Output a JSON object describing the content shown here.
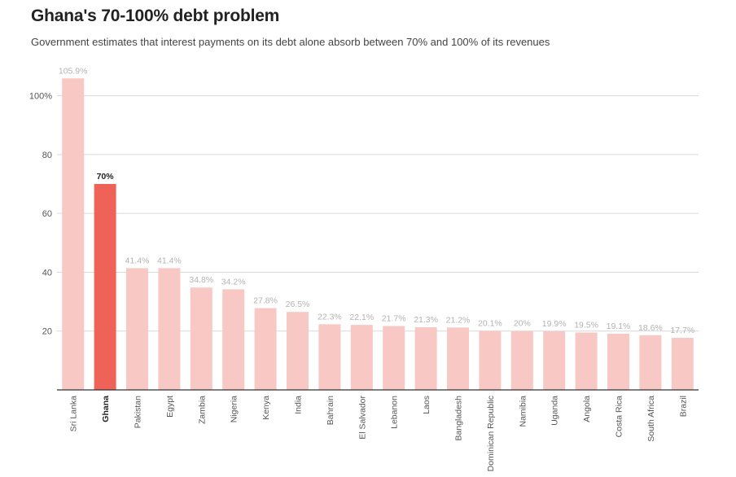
{
  "header": {
    "title": "Ghana's 70-100% debt problem",
    "subtitle": "Government estimates that interest payments on its debt alone absorb between 70% and 100% of its revenues"
  },
  "chart_data": {
    "type": "bar",
    "categories": [
      "Sri Lanka",
      "Ghana",
      "Pakistan",
      "Egypt",
      "Zambia",
      "Nigeria",
      "Kenya",
      "India",
      "Bahrain",
      "El Salvador",
      "Lebanon",
      "Laos",
      "Bangladesh",
      "Dominican Republic",
      "Namibia",
      "Uganda",
      "Angola",
      "Costa Rica",
      "South Africa",
      "Brazil"
    ],
    "values": [
      105.9,
      70,
      41.4,
      41.4,
      34.8,
      34.2,
      27.8,
      26.5,
      22.3,
      22.1,
      21.7,
      21.3,
      21.2,
      20.1,
      20,
      19.9,
      19.5,
      19.1,
      18.6,
      17.7
    ],
    "value_labels": [
      "105.9%",
      "70%",
      "41.4%",
      "41.4%",
      "34.8%",
      "34.2%",
      "27.8%",
      "26.5%",
      "22.3%",
      "22.1%",
      "21.7%",
      "21.3%",
      "21.2%",
      "20.1%",
      "20%",
      "19.9%",
      "19.5%",
      "19.1%",
      "18.6%",
      "17.7%"
    ],
    "highlight": "Ghana",
    "yticks": [
      20,
      40,
      60,
      80,
      100
    ],
    "ytick_labels": [
      "20",
      "40",
      "60",
      "80",
      "100%"
    ],
    "ylim": [
      0,
      100
    ],
    "grid": true,
    "colors": {
      "bar": "#f8c8c4",
      "highlight": "#ee6258",
      "grid": "#d9d9d9",
      "axis": "#333333"
    }
  }
}
